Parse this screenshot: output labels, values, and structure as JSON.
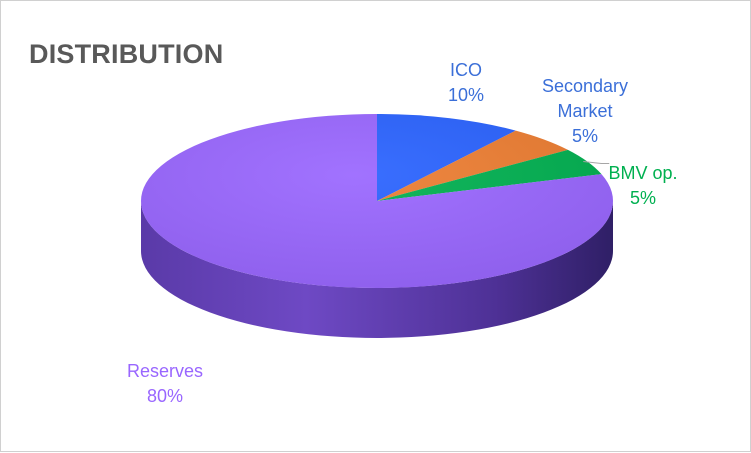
{
  "chart_data": {
    "type": "pie",
    "title": "DISTRIBUTION",
    "slices": [
      {
        "label": "ICO",
        "value": 10,
        "pct_label": "10%",
        "color": "#2962ff",
        "label_color": "#3b6fd8"
      },
      {
        "label": "Secondary Market",
        "value": 5,
        "pct_label": "5%",
        "color": "#ed7d31",
        "label_color": "#3b6fd8"
      },
      {
        "label": "BMV op.",
        "value": 5,
        "pct_label": "5%",
        "color": "#00b050",
        "label_color": "#00b050"
      },
      {
        "label": "Reserves",
        "value": 80,
        "pct_label": "80%",
        "color": "#9966ff",
        "label_color": "#9966ff"
      }
    ],
    "style": "3d-pie",
    "legend": "none"
  }
}
